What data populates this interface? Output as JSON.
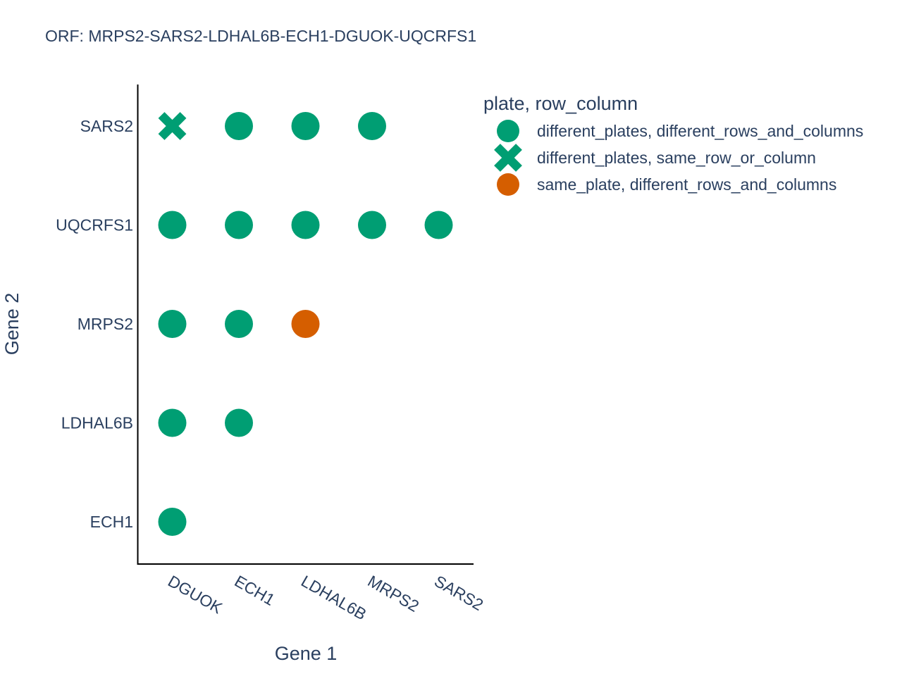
{
  "chart_data": {
    "type": "scatter",
    "title": "ORF: MRPS2-SARS2-LDHAL6B-ECH1-DGUOK-UQCRFS1",
    "xlabel": "Gene 1",
    "ylabel": "Gene 2",
    "x_categories": [
      "DGUOK",
      "ECH1",
      "LDHAL6B",
      "MRPS2",
      "SARS2"
    ],
    "y_categories": [
      "ECH1",
      "LDHAL6B",
      "MRPS2",
      "UQCRFS1",
      "SARS2"
    ],
    "grid": false,
    "legend": {
      "title": "plate, row_column",
      "position": "top-right"
    },
    "series": [
      {
        "name": "different_plates, different_rows_and_columns",
        "color": "#009e73",
        "symbol": "circle",
        "points": [
          {
            "x": "DGUOK",
            "y": "ECH1"
          },
          {
            "x": "DGUOK",
            "y": "LDHAL6B"
          },
          {
            "x": "ECH1",
            "y": "LDHAL6B"
          },
          {
            "x": "DGUOK",
            "y": "MRPS2"
          },
          {
            "x": "ECH1",
            "y": "MRPS2"
          },
          {
            "x": "DGUOK",
            "y": "UQCRFS1"
          },
          {
            "x": "ECH1",
            "y": "UQCRFS1"
          },
          {
            "x": "LDHAL6B",
            "y": "UQCRFS1"
          },
          {
            "x": "MRPS2",
            "y": "UQCRFS1"
          },
          {
            "x": "SARS2",
            "y": "UQCRFS1"
          },
          {
            "x": "ECH1",
            "y": "SARS2"
          },
          {
            "x": "LDHAL6B",
            "y": "SARS2"
          },
          {
            "x": "MRPS2",
            "y": "SARS2"
          }
        ]
      },
      {
        "name": "different_plates, same_row_or_column",
        "color": "#009e73",
        "symbol": "x",
        "points": [
          {
            "x": "DGUOK",
            "y": "SARS2"
          }
        ]
      },
      {
        "name": "same_plate, different_rows_and_columns",
        "color": "#d55e00",
        "symbol": "circle",
        "points": [
          {
            "x": "LDHAL6B",
            "y": "MRPS2"
          }
        ]
      }
    ]
  }
}
